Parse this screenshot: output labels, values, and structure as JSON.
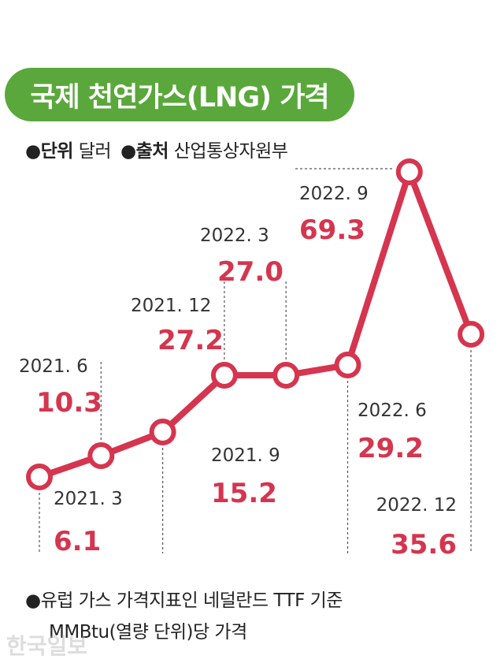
{
  "title": "국제 천연가스(LNG) 가격",
  "meta": {
    "unit_label": "단위",
    "unit_value": "달러",
    "source_label": "출처",
    "source_value": "산업통상자원부"
  },
  "footnote": {
    "line1": "●유럽 가스 가격지표인 네덜란드 TTF 기준",
    "line2": "MMBtu(열량 단위)당 가격"
  },
  "credit": "한국일보",
  "colors": {
    "line": "#d5354f",
    "value_text": "#d5354f",
    "title_bg": "#5aa83b"
  },
  "chart_data": {
    "type": "line",
    "categories": [
      "2021. 3",
      "2021. 6",
      "2021. 9",
      "2021. 12",
      "2022. 3",
      "2022. 6",
      "2022. 9",
      "2022. 12"
    ],
    "values": [
      6.1,
      10.3,
      15.2,
      27.2,
      27.0,
      29.2,
      69.3,
      35.6
    ],
    "value_labels": [
      "6.1",
      "10.3",
      "15.2",
      "27.2",
      "27.0",
      "29.2",
      "69.3",
      "35.6"
    ],
    "label_positions": [
      "below",
      "above",
      "below",
      "above",
      "above",
      "below",
      "above",
      "below"
    ]
  }
}
